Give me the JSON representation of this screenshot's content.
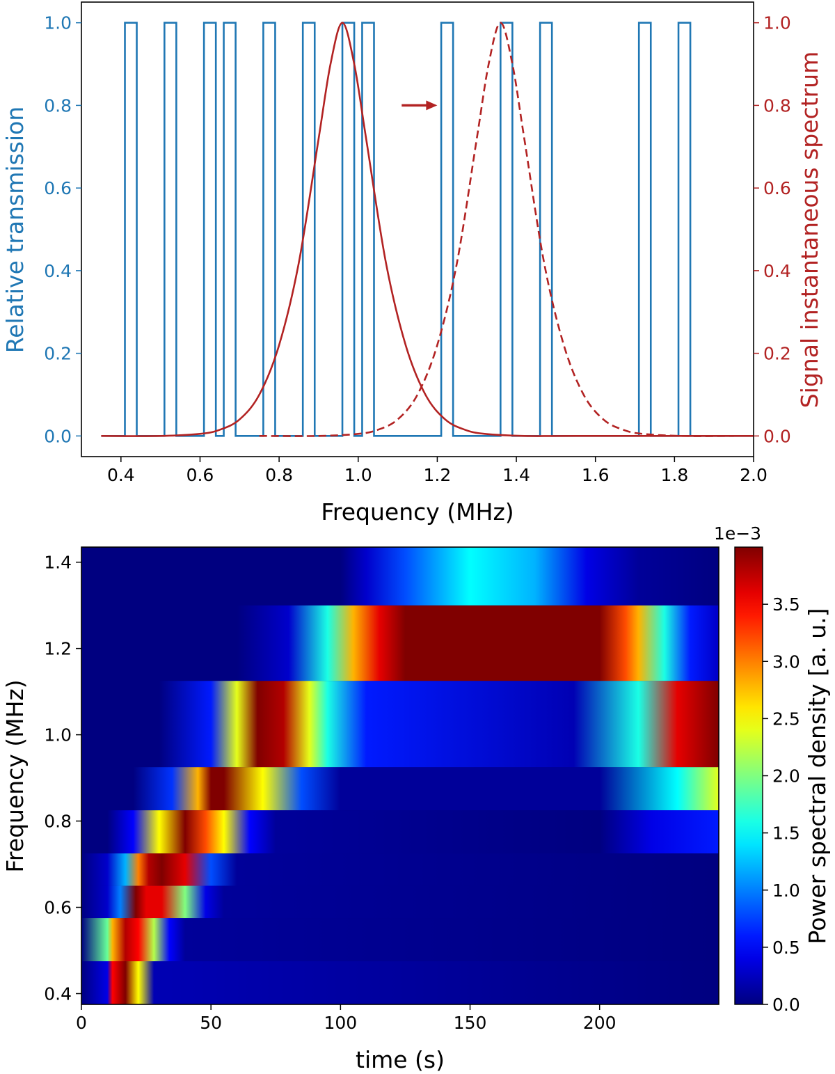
{
  "chart_data": [
    {
      "type": "line",
      "xlabel": "Frequency (MHz)",
      "ylabel_left": "Relative transmission",
      "ylabel_right": "Signal instantaneous spectrum",
      "xlim": [
        0.3,
        2.0
      ],
      "ylim_left": [
        -0.05,
        1.05
      ],
      "ylim_right": [
        -0.05,
        1.05
      ],
      "x_ticks": [
        "0.4",
        "0.6",
        "0.8",
        "1.0",
        "1.2",
        "1.4",
        "1.6",
        "1.8",
        "2.0"
      ],
      "y_ticks_left": [
        "0.0",
        "0.2",
        "0.4",
        "0.6",
        "0.8",
        "1.0"
      ],
      "y_ticks_right": [
        "0.0",
        "0.2",
        "0.4",
        "0.6",
        "0.8",
        "1.0"
      ],
      "colors": {
        "transmission": "#1f77b4",
        "spectrum": "#b22222"
      },
      "series": [
        {
          "style": "step",
          "axis": "left",
          "x": [
            0.35,
            0.41,
            0.41,
            0.44,
            0.44,
            0.51,
            0.51,
            0.54,
            0.54,
            0.61,
            0.61,
            0.64,
            0.64,
            0.66,
            0.66,
            0.69,
            0.69,
            0.76,
            0.76,
            0.79,
            0.79,
            0.86,
            0.86,
            0.89,
            0.89,
            0.96,
            0.96,
            0.99,
            0.99,
            1.01,
            1.01,
            1.04,
            1.04,
            1.21,
            1.21,
            1.24,
            1.24,
            1.36,
            1.36,
            1.39,
            1.39,
            1.46,
            1.46,
            1.49,
            1.49,
            1.71,
            1.71,
            1.74,
            1.74,
            1.81,
            1.81,
            1.84,
            1.84,
            2.0
          ],
          "y": [
            0,
            0,
            1,
            1,
            0,
            0,
            1,
            1,
            0,
            0,
            1,
            1,
            0,
            0,
            1,
            1,
            0,
            0,
            1,
            1,
            0,
            0,
            1,
            1,
            0,
            0,
            1,
            1,
            0,
            0,
            1,
            1,
            0,
            0,
            1,
            1,
            0,
            0,
            1,
            1,
            0,
            0,
            1,
            1,
            0,
            0,
            1,
            1,
            0,
            0,
            1,
            1,
            0,
            0
          ]
        },
        {
          "style": "solid",
          "axis": "right",
          "x": [
            0.35,
            0.5,
            0.6,
            0.65,
            0.7,
            0.75,
            0.8,
            0.85,
            0.9,
            0.93,
            0.96,
            0.99,
            1.02,
            1.07,
            1.12,
            1.17,
            1.22,
            1.27,
            1.32,
            1.42,
            1.55,
            2.0
          ],
          "y": [
            0.0,
            0.0,
            0.005,
            0.015,
            0.04,
            0.1,
            0.22,
            0.42,
            0.72,
            0.9,
            1.0,
            0.9,
            0.72,
            0.42,
            0.22,
            0.1,
            0.04,
            0.015,
            0.005,
            0.0,
            0.0,
            0.0
          ]
        },
        {
          "style": "dashed",
          "axis": "right",
          "x": [
            0.75,
            0.9,
            1.0,
            1.05,
            1.1,
            1.15,
            1.2,
            1.25,
            1.3,
            1.33,
            1.36,
            1.39,
            1.42,
            1.47,
            1.52,
            1.57,
            1.62,
            1.67,
            1.72,
            1.82,
            1.95
          ],
          "y": [
            0.0,
            0.0,
            0.005,
            0.015,
            0.04,
            0.1,
            0.22,
            0.42,
            0.72,
            0.9,
            1.0,
            0.9,
            0.72,
            0.42,
            0.22,
            0.1,
            0.04,
            0.015,
            0.005,
            0.0,
            0.0
          ]
        }
      ],
      "annotation": {
        "type": "arrow",
        "x_start": 1.11,
        "x_end": 1.2,
        "y": 0.8
      }
    },
    {
      "type": "heatmap",
      "xlabel": "time (s)",
      "ylabel": "Frequency (MHz)",
      "colorbar_label": "Power spectral density [a. u.]",
      "colorbar_offset": "1e−3",
      "colormap": "jet",
      "xlim": [
        0,
        246
      ],
      "ylim": [
        0.375,
        1.435
      ],
      "clim": [
        0,
        0.004
      ],
      "x_ticks": [
        "0",
        "50",
        "100",
        "150",
        "200"
      ],
      "y_ticks": [
        "0.4",
        "0.6",
        "0.8",
        "1.0",
        "1.2",
        "1.4"
      ],
      "colorbar_ticks": [
        "0.0",
        "0.5",
        "1.0",
        "1.5",
        "2.0",
        "2.5",
        "3.0",
        "3.5"
      ],
      "bands": [
        {
          "y0": 0.375,
          "y1": 0.475,
          "stops": [
            [
              10,
              0.0004
            ],
            [
              12,
              0.0035
            ],
            [
              17,
              0.004
            ],
            [
              22,
              0.0025
            ],
            [
              28,
              0.0002
            ],
            [
              246,
              0.0
            ]
          ]
        },
        {
          "y0": 0.475,
          "y1": 0.575,
          "stops": [
            [
              10,
              0.0019
            ],
            [
              12,
              0.0028
            ],
            [
              17,
              0.0038
            ],
            [
              22,
              0.0035
            ],
            [
              28,
              0.0022
            ],
            [
              34,
              0.0005
            ],
            [
              40,
              0.0001
            ],
            [
              246,
              0.0
            ]
          ]
        },
        {
          "y0": 0.575,
          "y1": 0.65,
          "stops": [
            [
              10,
              0.0003
            ],
            [
              15,
              0.001
            ],
            [
              21,
              0.004
            ],
            [
              25,
              0.0036
            ],
            [
              31,
              0.0036
            ],
            [
              40,
              0.002
            ],
            [
              48,
              0.0004
            ],
            [
              55,
              0.0001
            ],
            [
              246,
              0.0
            ]
          ]
        },
        {
          "y0": 0.65,
          "y1": 0.725,
          "stops": [
            [
              10,
              0.0003
            ],
            [
              17,
              0.0012
            ],
            [
              22,
              0.003
            ],
            [
              26,
              0.0038
            ],
            [
              31,
              0.004
            ],
            [
              40,
              0.0036
            ],
            [
              50,
              0.0008
            ],
            [
              60,
              0.0001
            ],
            [
              246,
              0.0
            ]
          ]
        },
        {
          "y0": 0.725,
          "y1": 0.825,
          "stops": [
            [
              10,
              0.0
            ],
            [
              20,
              0.0005
            ],
            [
              30,
              0.0025
            ],
            [
              40,
              0.004
            ],
            [
              48,
              0.0032
            ],
            [
              55,
              0.0025
            ],
            [
              65,
              0.0005
            ],
            [
              75,
              0.0001
            ],
            [
              200,
              0.0
            ],
            [
              220,
              0.0004
            ],
            [
              246,
              0.0006
            ]
          ]
        },
        {
          "y0": 0.825,
          "y1": 0.925,
          "stops": [
            [
              20,
              0.0
            ],
            [
              35,
              0.0007
            ],
            [
              45,
              0.0028
            ],
            [
              50,
              0.004
            ],
            [
              55,
              0.004
            ],
            [
              70,
              0.0025
            ],
            [
              85,
              0.0008
            ],
            [
              100,
              0.0001
            ],
            [
              200,
              0.0001
            ],
            [
              230,
              0.0015
            ],
            [
              246,
              0.0024
            ]
          ]
        },
        {
          "y0": 0.925,
          "y1": 1.125,
          "stops": [
            [
              30,
              0.0
            ],
            [
              50,
              0.0006
            ],
            [
              60,
              0.0024
            ],
            [
              68,
              0.004
            ],
            [
              78,
              0.0038
            ],
            [
              88,
              0.0024
            ],
            [
              95,
              0.0016
            ],
            [
              110,
              0.0006
            ],
            [
              190,
              0.0002
            ],
            [
              215,
              0.0016
            ],
            [
              230,
              0.0036
            ],
            [
              246,
              0.004
            ]
          ]
        },
        {
          "y0": 1.125,
          "y1": 1.3,
          "stops": [
            [
              60,
              0.0
            ],
            [
              80,
              0.0003
            ],
            [
              95,
              0.0016
            ],
            [
              105,
              0.0028
            ],
            [
              115,
              0.0036
            ],
            [
              125,
              0.004
            ],
            [
              200,
              0.004
            ],
            [
              210,
              0.0032
            ],
            [
              215,
              0.0028
            ],
            [
              225,
              0.0016
            ],
            [
              235,
              0.0006
            ],
            [
              245,
              0.0003
            ]
          ]
        },
        {
          "y0": 1.3,
          "y1": 1.435,
          "stops": [
            [
              100,
              0.0
            ],
            [
              110,
              0.0003
            ],
            [
              125,
              0.0008
            ],
            [
              150,
              0.0015
            ],
            [
              175,
              0.0012
            ],
            [
              195,
              0.0004
            ],
            [
              215,
              0.0001
            ],
            [
              246,
              0.0
            ]
          ]
        }
      ]
    }
  ]
}
